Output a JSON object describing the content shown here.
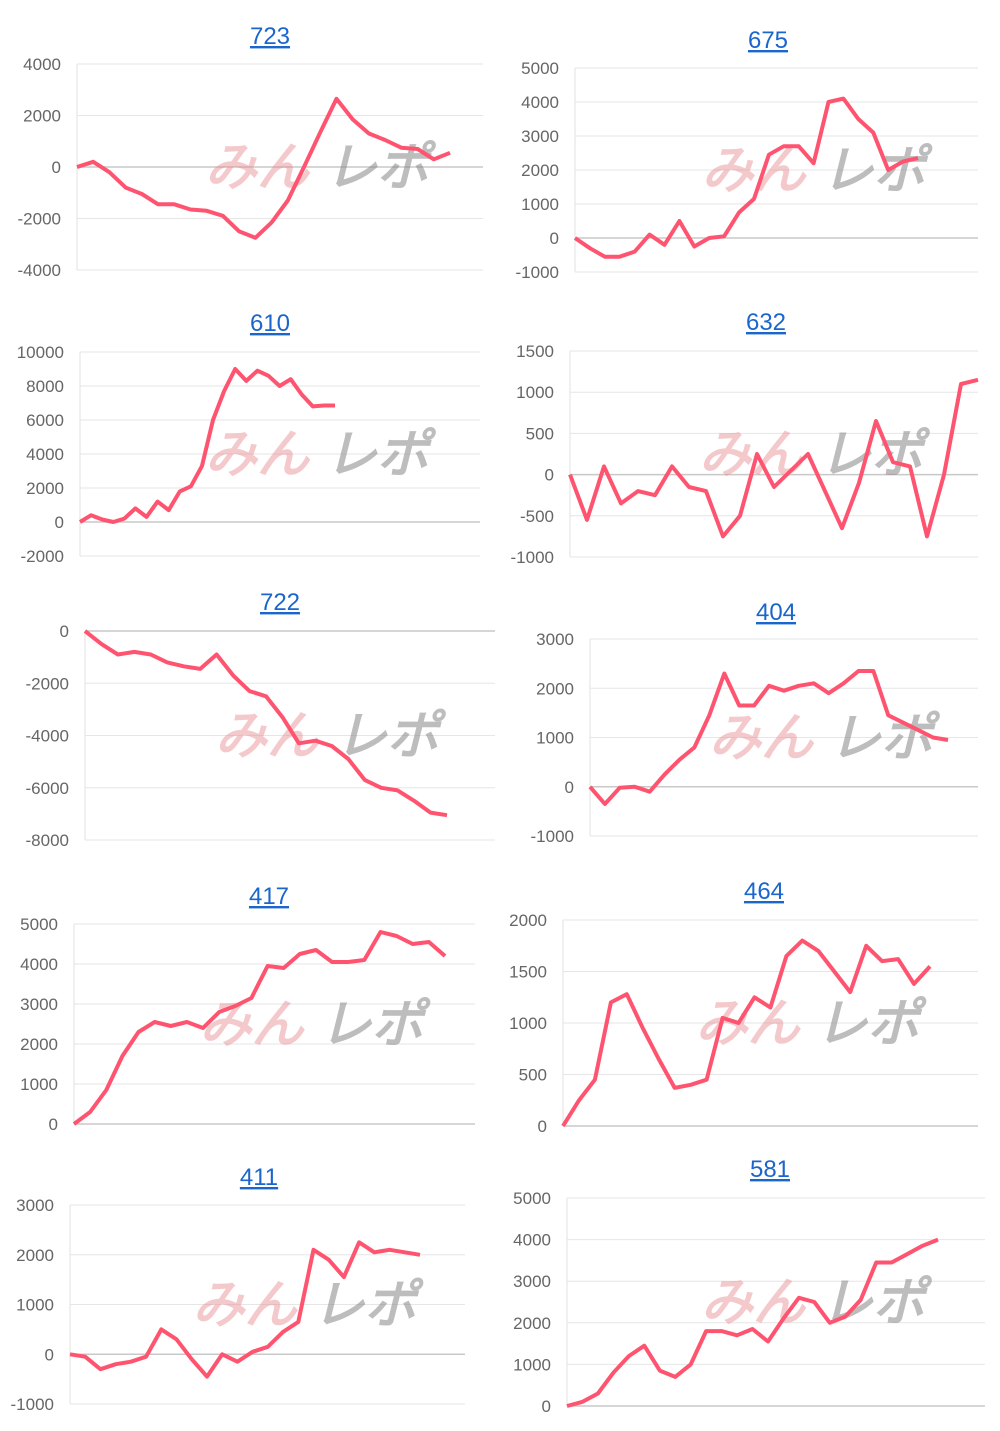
{
  "watermark": "みんレポ",
  "line_color": "#ff5470",
  "chart_data": [
    {
      "type": "line",
      "title": "723",
      "ylim": [
        -4000,
        4000
      ],
      "yticks": [
        4000,
        2000,
        0,
        -2000,
        -4000
      ],
      "values": [
        0,
        200,
        -200,
        -800,
        -1050,
        -1450,
        -1450,
        -1650,
        -1700,
        -1900,
        -2500,
        -2750,
        -2150,
        -1300,
        0,
        1350,
        2650,
        1850,
        1300,
        1050,
        750,
        700,
        300,
        550
      ]
    },
    {
      "type": "line",
      "title": "675",
      "ylim": [
        -1000,
        5000
      ],
      "yticks": [
        5000,
        4000,
        3000,
        2000,
        1000,
        0,
        -1000
      ],
      "values": [
        0,
        -300,
        -550,
        -550,
        -400,
        100,
        -200,
        500,
        -250,
        0,
        50,
        750,
        1150,
        2450,
        2700,
        2700,
        2200,
        4000,
        4100,
        3500,
        3100,
        2000,
        2250,
        2350
      ]
    },
    {
      "type": "line",
      "title": "610",
      "ylim": [
        -2000,
        10000
      ],
      "yticks": [
        10000,
        8000,
        6000,
        4000,
        2000,
        0,
        -2000
      ],
      "values": [
        0,
        400,
        150,
        0,
        200,
        800,
        300,
        1200,
        700,
        1800,
        2100,
        3300,
        6000,
        7700,
        9000,
        8300,
        8900,
        8600,
        8000,
        8400,
        7500,
        6800,
        6850,
        6850
      ]
    },
    {
      "type": "line",
      "title": "632",
      "ylim": [
        -1000,
        1500
      ],
      "yticks": [
        1500,
        1000,
        500,
        0,
        -500,
        -1000
      ],
      "values": [
        0,
        -550,
        100,
        -350,
        -200,
        -250,
        100,
        -150,
        -200,
        -750,
        -500,
        250,
        -150,
        50,
        250,
        -200,
        -650,
        -100,
        650,
        150,
        100,
        -750,
        0,
        1100,
        1150
      ]
    },
    {
      "type": "line",
      "title": "722",
      "ylim": [
        -8000,
        0
      ],
      "yticks": [
        0,
        -2000,
        -4000,
        -6000,
        -8000
      ],
      "values": [
        0,
        -500,
        -900,
        -800,
        -900,
        -1200,
        -1350,
        -1450,
        -900,
        -1700,
        -2300,
        -2500,
        -3300,
        -4300,
        -4200,
        -4400,
        -4900,
        -5700,
        -6000,
        -6100,
        -6500,
        -6950,
        -7050
      ]
    },
    {
      "type": "line",
      "title": "404",
      "ylim": [
        -1000,
        3000
      ],
      "yticks": [
        3000,
        2000,
        1000,
        0,
        -1000
      ],
      "values": [
        0,
        -350,
        -20,
        0,
        -100,
        250,
        550,
        800,
        1450,
        2300,
        1650,
        1650,
        2050,
        1950,
        2050,
        2100,
        1900,
        2100,
        2350,
        2350,
        1450,
        1300,
        1150,
        1000,
        950
      ]
    },
    {
      "type": "line",
      "title": "417",
      "ylim": [
        0,
        5000
      ],
      "yticks": [
        5000,
        4000,
        3000,
        2000,
        1000,
        0
      ],
      "values": [
        0,
        300,
        850,
        1700,
        2300,
        2550,
        2450,
        2550,
        2400,
        2800,
        2950,
        3150,
        3950,
        3900,
        4250,
        4350,
        4050,
        4050,
        4100,
        4800,
        4700,
        4500,
        4550,
        4200
      ]
    },
    {
      "type": "line",
      "title": "464",
      "ylim": [
        0,
        2000
      ],
      "yticks": [
        2000,
        1500,
        1000,
        500,
        0
      ],
      "values": [
        0,
        250,
        450,
        1200,
        1280,
        950,
        650,
        370,
        400,
        450,
        1050,
        1000,
        1250,
        1150,
        1650,
        1800,
        1700,
        1500,
        1300,
        1750,
        1600,
        1620,
        1380,
        1550
      ]
    },
    {
      "type": "line",
      "title": "411",
      "ylim": [
        -1000,
        3000
      ],
      "yticks": [
        3000,
        2000,
        1000,
        0,
        -1000
      ],
      "values": [
        0,
        -50,
        -300,
        -200,
        -150,
        -50,
        500,
        300,
        -100,
        -450,
        0,
        -150,
        50,
        150,
        450,
        650,
        2100,
        1900,
        1550,
        2250,
        2050,
        2100,
        2050,
        2000
      ]
    },
    {
      "type": "line",
      "title": "581",
      "ylim": [
        0,
        5000
      ],
      "yticks": [
        5000,
        4000,
        3000,
        2000,
        1000,
        0
      ],
      "values": [
        0,
        100,
        300,
        800,
        1200,
        1450,
        850,
        700,
        1000,
        1800,
        1800,
        1700,
        1850,
        1550,
        2100,
        2600,
        2500,
        2000,
        2150,
        2550,
        3450,
        3450,
        3650,
        3850,
        4000
      ]
    }
  ]
}
